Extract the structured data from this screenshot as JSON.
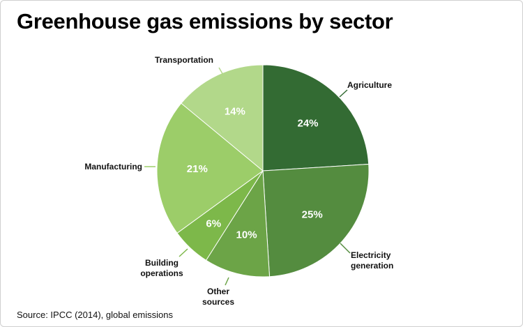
{
  "title": "Greenhouse gas emissions by sector",
  "source": "Source: IPCC (2014), global emissions",
  "chart_data": {
    "type": "pie",
    "title": "Greenhouse gas emissions by sector",
    "slices": [
      {
        "category": "Agriculture",
        "label_lines": [
          "Agriculture"
        ],
        "value": 24,
        "value_label": "24%",
        "color": "#336b33"
      },
      {
        "category": "Electricity generation",
        "label_lines": [
          "Electricity",
          "generation"
        ],
        "value": 25,
        "value_label": "25%",
        "color": "#548c3f"
      },
      {
        "category": "Other sources",
        "label_lines": [
          "Other",
          "sources"
        ],
        "value": 10,
        "value_label": "10%",
        "color": "#6ca447"
      },
      {
        "category": "Building operations",
        "label_lines": [
          "Building",
          "operations"
        ],
        "value": 6,
        "value_label": "6%",
        "color": "#7db84a"
      },
      {
        "category": "Manufacturing",
        "label_lines": [
          "Manufacturing"
        ],
        "value": 21,
        "value_label": "21%",
        "color": "#9ccd69"
      },
      {
        "category": "Transportation",
        "label_lines": [
          "Transportation"
        ],
        "value": 14,
        "value_label": "14%",
        "color": "#b2d88a"
      }
    ],
    "start_direction": "12 o'clock",
    "direction": "clockwise",
    "legend": "none"
  }
}
